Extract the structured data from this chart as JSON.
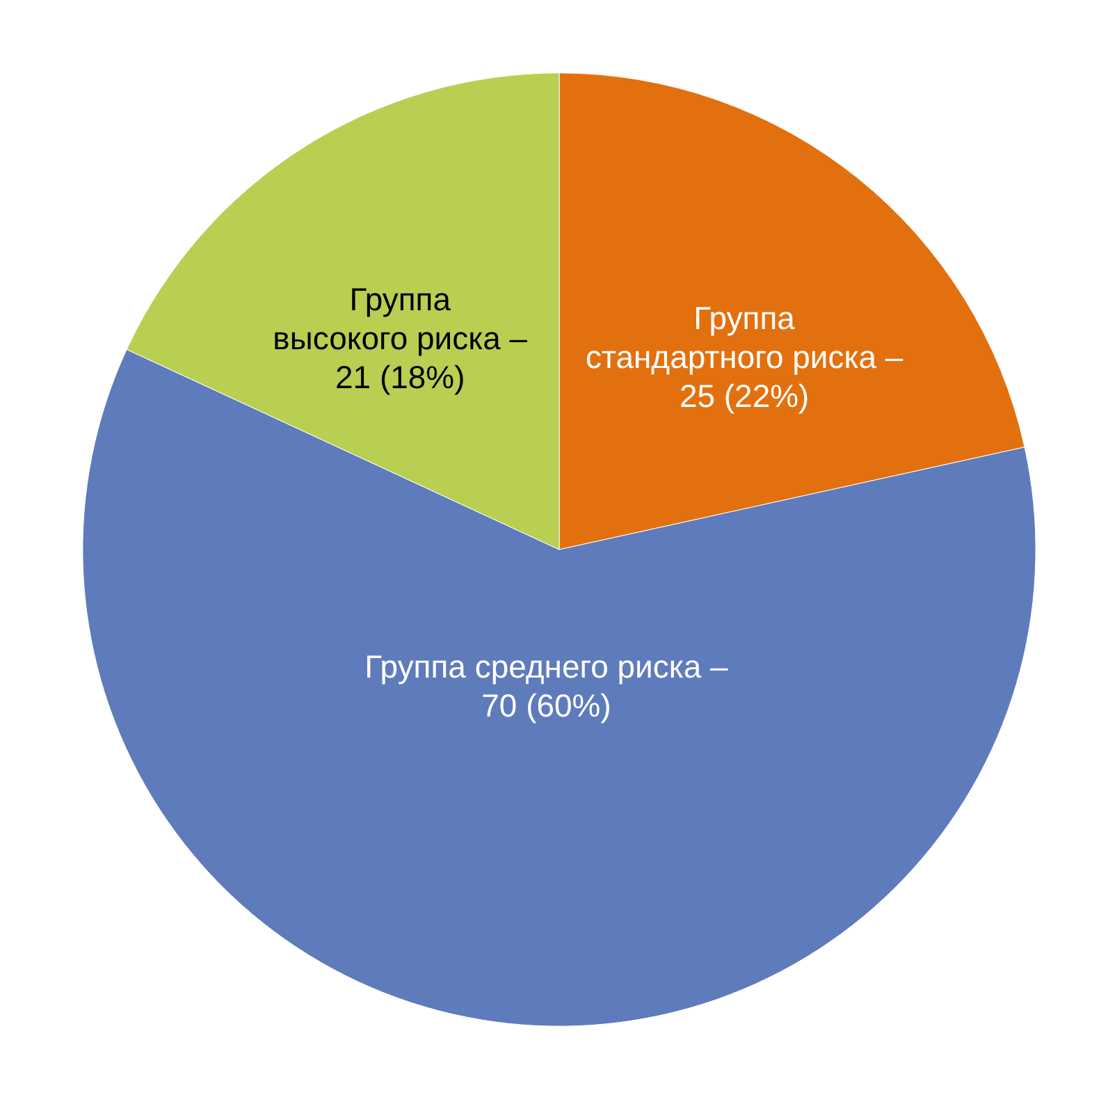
{
  "chart_data": {
    "type": "pie",
    "categories": [
      "Группа стандартного риска –",
      "Группа среднего риска –",
      "Группа высокого риска –"
    ],
    "values": [
      25,
      70,
      21
    ],
    "colors": [
      "#e3700e",
      "#5e7bbb",
      "#b8cf52"
    ],
    "value_labels": [
      "25 (22%)",
      "70 (60%)",
      "21 (18%)"
    ]
  }
}
